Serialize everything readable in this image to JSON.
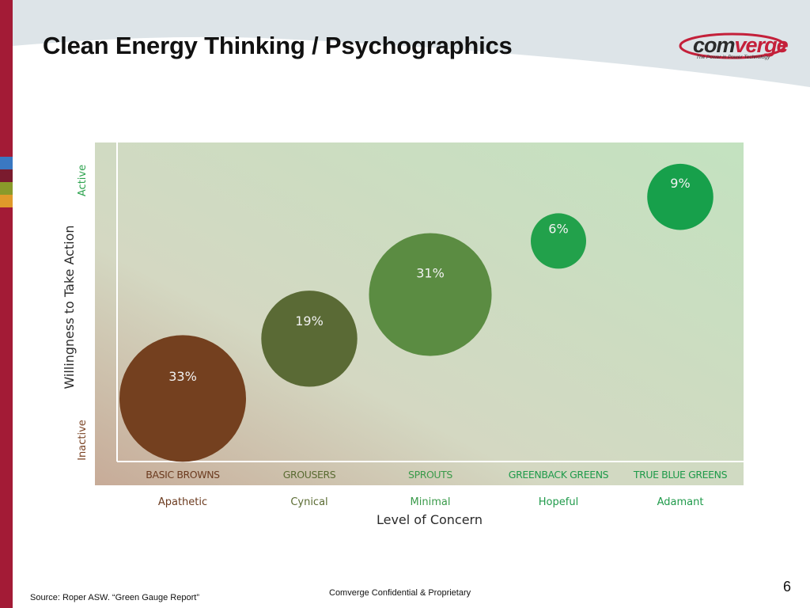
{
  "slide": {
    "title": "Clean Energy Thinking / Psychographics",
    "logo": {
      "prefix": "com",
      "suffix": "verge",
      "tagline": "The Power in Power Technology"
    },
    "source": "Source: Roper ASW. “Green Gauge Report”",
    "confidential": "Comverge Confidential & Proprietary",
    "page_number": "6"
  },
  "colors": {
    "accent_bar": "#a31b36",
    "swatches": [
      "#3a78c2",
      "#7a1b2e",
      "#8a9a2a",
      "#e09a2a"
    ]
  },
  "chart_data": {
    "type": "scatter",
    "title": "",
    "xlabel": "Level of Concern",
    "ylabel": "Willingness to Take Action",
    "y_range_labels": {
      "low": "Inactive",
      "high": "Active"
    },
    "categories": [
      "BASIC BROWNS",
      "GROUSERS",
      "SPROUTS",
      "GREENBACK GREENS",
      "TRUE BLUE GREENS"
    ],
    "sublabels": [
      "Apathetic",
      "Cynical",
      "Minimal",
      "Hopeful",
      "Adamant"
    ],
    "category_label_colors": [
      "#6b3a1e",
      "#5a6b32",
      "#3a9a4a",
      "#1f9a4a",
      "#1f9a4a"
    ],
    "sublabel_colors": [
      "#6b3a1e",
      "#5a6b32",
      "#3a9a4a",
      "#1f9a4a",
      "#1f9a4a"
    ],
    "series": [
      {
        "values": [
          33,
          19,
          31,
          6,
          9
        ],
        "labels": [
          "33%",
          "19%",
          "31%",
          "6%",
          "9%"
        ],
        "willingness": [
          0.2,
          0.39,
          0.53,
          0.7,
          0.84
        ],
        "colors": [
          "#74401f",
          "#5a6a35",
          "#5b8c42",
          "#22a14b",
          "#17a04b"
        ]
      }
    ],
    "grid": false,
    "legend": "none"
  }
}
